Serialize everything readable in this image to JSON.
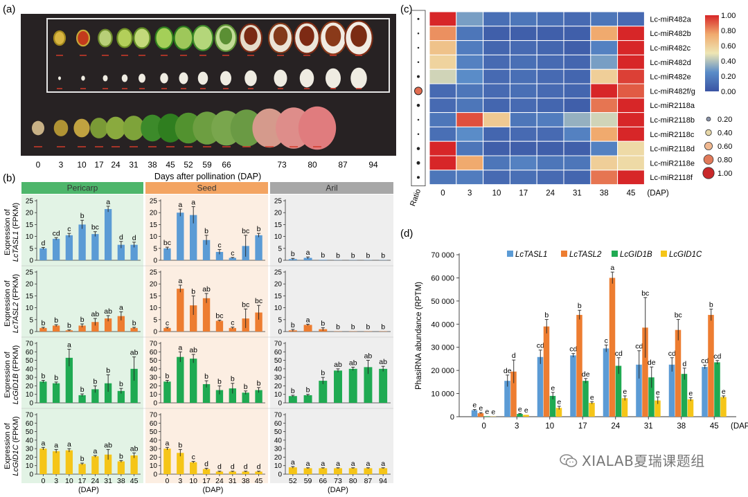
{
  "watermark": "XIALAB夏瑞课题组",
  "panel_a": {
    "label": "(a)",
    "days": [
      "0",
      "3",
      "10",
      "17",
      "24",
      "31",
      "38",
      "45",
      "52",
      "59",
      "66",
      "73",
      "80",
      "87",
      "94"
    ],
    "xlabel": "Days after pollination (DAP)"
  },
  "panel_b": {
    "label": "(b)",
    "tissues": [
      "Pericarp",
      "Seed",
      "Aril"
    ],
    "genes": [
      "LcTASL1",
      "LcTASL2",
      "LcGID1B",
      "LcGID1C"
    ],
    "ylabel_prefix": "Expression of",
    "ylabel_suffix": "(FPKM)",
    "xlabel": "(DAP)",
    "x_pericarp": [
      "0",
      "3",
      "10",
      "17",
      "24",
      "31",
      "38",
      "45"
    ],
    "x_seed": [
      "0",
      "3",
      "10",
      "17",
      "24",
      "31",
      "38",
      "45"
    ],
    "x_aril": [
      "52",
      "59",
      "66",
      "73",
      "80",
      "87",
      "94"
    ],
    "rows": [
      {
        "ymax": 25,
        "ticks": [
          "0",
          "5",
          "10",
          "15",
          "20",
          "25"
        ],
        "color": "#5b9bd5",
        "pericarp": {
          "v": [
            5,
            9,
            10.5,
            15,
            11,
            21.5,
            6.5,
            6.5
          ],
          "e": [
            0.4,
            0.5,
            0.8,
            1.8,
            1,
            1.2,
            1.4,
            1.1
          ],
          "l": [
            "d",
            "cd",
            "c",
            "b",
            "bc",
            "a",
            "d",
            "d"
          ]
        },
        "seed": {
          "v": [
            5,
            20,
            19,
            8.5,
            3.5,
            1,
            6,
            10.5
          ],
          "e": [
            0.5,
            1.5,
            3.5,
            2,
            1,
            0.2,
            4.5,
            0.8
          ],
          "l": [
            "bc",
            "a",
            "a",
            "b",
            "c",
            "c",
            "bc",
            "b"
          ]
        },
        "aril": {
          "v": [
            0.5,
            1,
            0.2,
            0.1,
            0.1,
            0.1,
            0.1
          ],
          "e": [
            0.3,
            0.4,
            0.1,
            0,
            0,
            0,
            0
          ],
          "l": [
            "b",
            "a",
            "b",
            "b",
            "b",
            "b",
            "b"
          ]
        }
      },
      {
        "ymax": 25,
        "ticks": [
          "0",
          "5",
          "10",
          "15",
          "20",
          "25"
        ],
        "color": "#ed7d31",
        "pericarp": {
          "v": [
            1.5,
            2.5,
            0.5,
            2.5,
            4,
            5.5,
            6.5,
            1.5
          ],
          "e": [
            0.3,
            0.4,
            0.2,
            0.7,
            1.5,
            1.2,
            1.8,
            0.3
          ],
          "l": [
            "b",
            "b",
            "b",
            "b",
            "ab",
            "ab",
            "a",
            "b"
          ]
        },
        "seed": {
          "v": [
            1.5,
            18,
            11,
            14,
            4.5,
            1.5,
            5.5,
            8
          ],
          "e": [
            0.3,
            1.5,
            4,
            2,
            0.3,
            0.4,
            4,
            3
          ],
          "l": [
            "c",
            "a",
            "b",
            "ab",
            "bc",
            "c",
            "bc",
            "bc"
          ]
        },
        "aril": {
          "v": [
            0.5,
            2.8,
            1,
            0.1,
            0.1,
            0.1,
            0.1
          ],
          "e": [
            0.4,
            0.3,
            0.6,
            0,
            0,
            0,
            0
          ],
          "l": [
            "b",
            "a",
            "b",
            "b",
            "b",
            "b",
            "b"
          ]
        }
      },
      {
        "ymax": 70,
        "ticks": [
          "0",
          "10",
          "20",
          "30",
          "40",
          "50",
          "60",
          "70"
        ],
        "color": "#1faa52",
        "pericarp": {
          "v": [
            25,
            23,
            53,
            9,
            16,
            23,
            14,
            40
          ],
          "e": [
            1.5,
            1.5,
            10,
            1.5,
            4,
            10,
            3,
            14
          ],
          "l": [
            "b",
            "b",
            "a",
            "b",
            "b",
            "b",
            "b",
            "ab"
          ]
        },
        "seed": {
          "v": [
            25,
            54,
            52,
            22,
            15,
            17,
            12,
            15
          ],
          "e": [
            1.5,
            6,
            5,
            4,
            5,
            6,
            2,
            3
          ],
          "l": [
            "b",
            "a",
            "ab",
            "b",
            "b",
            "b",
            "b",
            "b"
          ]
        },
        "aril": {
          "v": [
            8,
            9,
            26,
            38,
            40,
            42,
            40
          ],
          "e": [
            1,
            1,
            4,
            2,
            2,
            8,
            3
          ],
          "l": [
            "b",
            "b",
            "b",
            "ab",
            "ab",
            "ab",
            "ab"
          ]
        }
      },
      {
        "ymax": 70,
        "ticks": [
          "0",
          "10",
          "20",
          "30",
          "40",
          "50",
          "60",
          "70"
        ],
        "color": "#f5c518",
        "pericarp": {
          "v": [
            30,
            27,
            28,
            12,
            21,
            23,
            15,
            22
          ],
          "e": [
            1.5,
            2,
            2,
            1,
            1,
            6,
            1,
            3
          ],
          "l": [
            "a",
            "a",
            "a",
            "b",
            "a",
            "ab",
            "b",
            "ab"
          ]
        },
        "seed": {
          "v": [
            30,
            25,
            14,
            6,
            3,
            3,
            3,
            3
          ],
          "e": [
            1.5,
            4,
            1,
            1,
            0.5,
            0.5,
            0.5,
            0.5
          ],
          "l": [
            "a",
            "b",
            "c",
            "d",
            "d",
            "d",
            "d",
            "d"
          ]
        },
        "aril": {
          "v": [
            8,
            7,
            7,
            7,
            7,
            7,
            7
          ],
          "e": [
            1,
            0.5,
            0.5,
            0.5,
            0.5,
            0.5,
            0.5
          ],
          "l": [
            "a",
            "a",
            "a",
            "a",
            "a",
            "a",
            "a"
          ]
        }
      }
    ],
    "colors": {
      "pericarp_bg": "#e2f3e5",
      "seed_bg": "#fceee2",
      "aril_bg": "#eeeeee",
      "pericarp_head": "#4db66b",
      "seed_head": "#f3a462",
      "aril_head": "#a7a7a7"
    }
  },
  "panel_c": {
    "label": "(c)",
    "rows": [
      "Lc-miR482a",
      "Lc-miR482b",
      "Lc-miR482c",
      "Lc-miR482d",
      "Lc-miR482e",
      "Lc-miR482f/g",
      "Lc-miR2118a",
      "Lc-miR2118b",
      "Lc-miR2118c",
      "Lc-miR2118d",
      "Lc-miR2118e",
      "Lc-miR2118f"
    ],
    "cols": [
      "0",
      "3",
      "10",
      "17",
      "24",
      "31",
      "38",
      "45"
    ],
    "col_unit": "(DAP)",
    "values": [
      [
        1.0,
        0.3,
        0.12,
        0.15,
        0.12,
        0.1,
        0.15,
        0.1
      ],
      [
        0.8,
        0.15,
        0.05,
        0.05,
        0.05,
        0.05,
        0.75,
        1.0
      ],
      [
        0.65,
        0.18,
        0.08,
        0.1,
        0.08,
        0.05,
        0.2,
        1.0
      ],
      [
        0.58,
        0.2,
        0.1,
        0.12,
        0.1,
        0.08,
        0.3,
        1.0
      ],
      [
        0.45,
        0.25,
        0.1,
        0.12,
        0.1,
        0.08,
        0.6,
        0.95
      ],
      [
        0.1,
        0.15,
        0.1,
        0.12,
        0.1,
        0.08,
        1.0,
        0.9
      ],
      [
        0.1,
        0.15,
        0.08,
        0.1,
        0.08,
        0.05,
        0.85,
        1.0
      ],
      [
        0.15,
        0.92,
        0.62,
        0.15,
        0.18,
        0.35,
        0.45,
        1.0
      ],
      [
        0.12,
        0.25,
        0.08,
        0.1,
        0.1,
        0.2,
        0.75,
        1.0
      ],
      [
        1.0,
        0.15,
        0.05,
        0.05,
        0.05,
        0.05,
        0.2,
        0.55
      ],
      [
        1.0,
        0.75,
        0.15,
        0.2,
        0.15,
        0.15,
        0.6,
        0.55
      ],
      [
        0.15,
        0.18,
        0.1,
        0.12,
        0.1,
        0.08,
        0.85,
        1.0
      ]
    ],
    "ratio_label": "Ratio",
    "ratio": [
      0.1,
      0.05,
      0.05,
      0.05,
      0.2,
      0.9,
      0.25,
      0.05,
      0.05,
      0.25,
      0.3,
      0.2
    ],
    "colorbar_ticks": [
      "1.00",
      "0.80",
      "0.60",
      "0.40",
      "0.20",
      "0.00"
    ],
    "size_legend": [
      "0.20",
      "0.40",
      "0.60",
      "0.80",
      "1.00"
    ]
  },
  "panel_d": {
    "label": "(d)",
    "chart_data": {
      "type": "bar",
      "categories": [
        "0",
        "3",
        "10",
        "17",
        "24",
        "31",
        "38",
        "45"
      ],
      "ylabel": "PhasiRNA abundance (RPTM)",
      "xlabel": "(DAP)",
      "ylim": [
        0,
        70000
      ],
      "yticks": [
        "0",
        "10 000",
        "20 000",
        "30 000",
        "40 000",
        "50 000",
        "60 000",
        "70 000"
      ],
      "series": [
        {
          "name": "LcTASL1",
          "color": "#5b9bd5",
          "values": [
            2800,
            15500,
            25800,
            26500,
            29500,
            22500,
            22500,
            21500
          ],
          "err": [
            300,
            2500,
            3000,
            800,
            1500,
            6000,
            3000,
            800
          ],
          "labels": [
            "e",
            "de",
            "cd",
            "cd",
            "c",
            "cd",
            "cd",
            "cd"
          ]
        },
        {
          "name": "LcTASL2",
          "color": "#ed7d31",
          "values": [
            1500,
            19500,
            39000,
            44000,
            60000,
            38500,
            37500,
            44000
          ],
          "err": [
            300,
            5000,
            3000,
            2000,
            2500,
            13000,
            4500,
            2500
          ],
          "labels": [
            "e",
            "d",
            "b",
            "b",
            "a",
            "bc",
            "bc",
            "b"
          ]
        },
        {
          "name": "LcGID1B",
          "color": "#1faa52",
          "values": [
            200,
            1200,
            9000,
            15500,
            22000,
            17000,
            18500,
            23500
          ],
          "err": [
            50,
            200,
            1500,
            1000,
            3500,
            4500,
            2500,
            800
          ],
          "labels": [
            "e",
            "e",
            "e",
            "de",
            "cd",
            "de",
            "d",
            "cd"
          ]
        },
        {
          "name": "LcGID1C",
          "color": "#f5c518",
          "values": [
            100,
            800,
            3800,
            6000,
            8000,
            7000,
            7500,
            8500
          ],
          "err": [
            30,
            150,
            700,
            500,
            1000,
            1500,
            700,
            500
          ],
          "labels": [
            "e",
            "e",
            "e",
            "e",
            "e",
            "e",
            "e",
            "e"
          ]
        }
      ]
    }
  }
}
